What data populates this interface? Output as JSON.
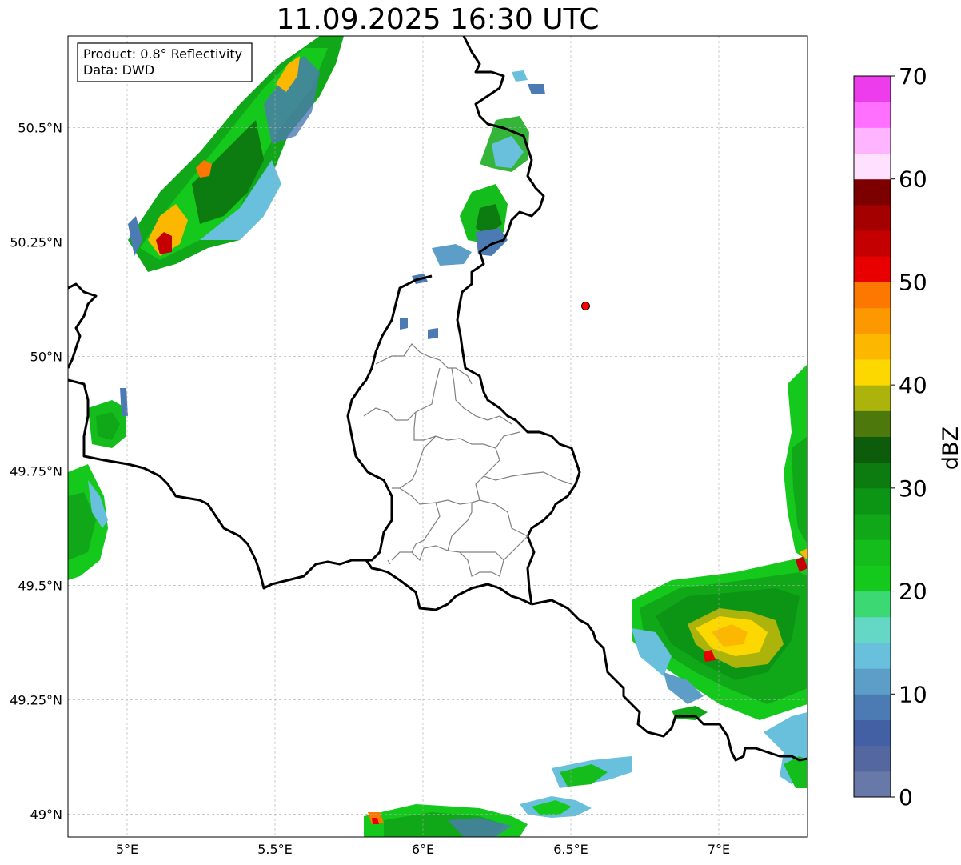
{
  "title": "11.09.2025 16:30 UTC",
  "info_box": {
    "product": "Product: 0.8° Reflectivity",
    "data": "Data: DWD"
  },
  "map": {
    "lon_range": [
      4.8,
      7.3
    ],
    "lat_range": [
      48.95,
      50.7
    ],
    "lon_ticks": [
      {
        "value": 5.0,
        "label": "5°E"
      },
      {
        "value": 5.5,
        "label": "5.5°E"
      },
      {
        "value": 6.0,
        "label": "6°E"
      },
      {
        "value": 6.5,
        "label": "6.5°E"
      },
      {
        "value": 7.0,
        "label": "7°E"
      }
    ],
    "lat_ticks": [
      {
        "value": 49.0,
        "label": "49°N"
      },
      {
        "value": 49.25,
        "label": "49.25°N"
      },
      {
        "value": 49.5,
        "label": "49.5°N"
      },
      {
        "value": 49.75,
        "label": "49.75°N"
      },
      {
        "value": 50.0,
        "label": "50°N"
      },
      {
        "value": 50.25,
        "label": "50.25°N"
      },
      {
        "value": 50.5,
        "label": "50.5°N"
      }
    ],
    "gridlines": true,
    "radar_site": {
      "lon": 6.55,
      "lat": 50.11,
      "color": "#ff0000"
    }
  },
  "colorbar": {
    "label": "dBZ",
    "range": [
      0,
      70
    ],
    "tick_labels": [
      "0",
      "10",
      "20",
      "30",
      "40",
      "50",
      "60",
      "70"
    ],
    "colors": [
      "#6878a8",
      "#54689f",
      "#4460a4",
      "#4c7bb4",
      "#5c9ec8",
      "#68c0dc",
      "#64d8c4",
      "#3cd874",
      "#14c81c",
      "#14bc1c",
      "#10a818",
      "#0c9414",
      "#0c7c10",
      "#0c5c0c",
      "#4c780c",
      "#acb40c",
      "#fcd800",
      "#fcb800",
      "#fc9800",
      "#fc7800",
      "#e80000",
      "#c40000",
      "#a40000",
      "#7c0000",
      "#ffe0ff",
      "#ffb4ff",
      "#ff70ff",
      "#ec3cec"
    ]
  }
}
